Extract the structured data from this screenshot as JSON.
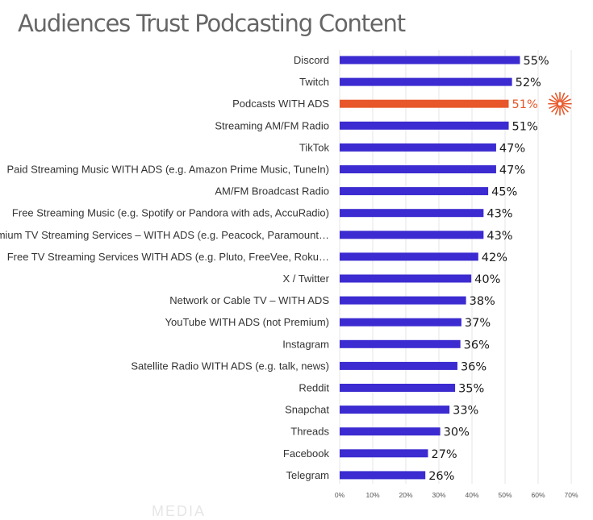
{
  "title": "Audiences Trust Podcasting Content",
  "watermark": "MEDIA",
  "colors": {
    "bar": "#3b2bd0",
    "highlight": "#e8572a",
    "grid": "#e6e6e6",
    "label": "#333333"
  },
  "highlight_icon": "starburst-icon",
  "chart_data": {
    "type": "bar",
    "orientation": "horizontal",
    "title": "Audiences Trust Podcasting Content",
    "xlabel": "",
    "ylabel": "",
    "xlim": [
      0,
      70
    ],
    "xticks": [
      "0%",
      "10%",
      "20%",
      "30%",
      "40%",
      "50%",
      "60%",
      "70%"
    ],
    "grid": true,
    "categories": [
      "Discord",
      "Twitch",
      "Podcasts WITH ADS",
      "Streaming AM/FM Radio",
      "TikTok",
      "Paid Streaming Music WITH ADS (e.g. Amazon Prime Music, TuneIn)",
      "AM/FM Broadcast Radio",
      "Free Streaming Music (e.g. Spotify or Pandora with ads, AccuRadio)",
      "Premium TV Streaming Services – WITH ADS (e.g. Peacock, Paramount…",
      "Free TV Streaming Services WITH ADS (e.g. Pluto, FreeVee, Roku…",
      "X / Twitter",
      "Network or Cable TV – WITH ADS",
      "YouTube WITH ADS (not Premium)",
      "Instagram",
      "Satellite Radio WITH ADS (e.g. talk, news)",
      "Reddit",
      "Snapchat",
      "Threads",
      "Facebook",
      "Telegram"
    ],
    "values": [
      54.5,
      52.1,
      51.1,
      51.1,
      47.3,
      47.3,
      44.9,
      43.5,
      43.5,
      41.9,
      39.8,
      38.2,
      36.8,
      36.5,
      35.6,
      34.9,
      33.2,
      30.4,
      26.7,
      25.9
    ],
    "value_labels": [
      "55%",
      "52%",
      "51%",
      "51%",
      "47%",
      "47%",
      "45%",
      "43%",
      "43%",
      "42%",
      "40%",
      "38%",
      "37%",
      "36%",
      "36%",
      "35%",
      "33%",
      "30%",
      "27%",
      "26%"
    ],
    "highlight_category": "Podcasts WITH ADS"
  }
}
